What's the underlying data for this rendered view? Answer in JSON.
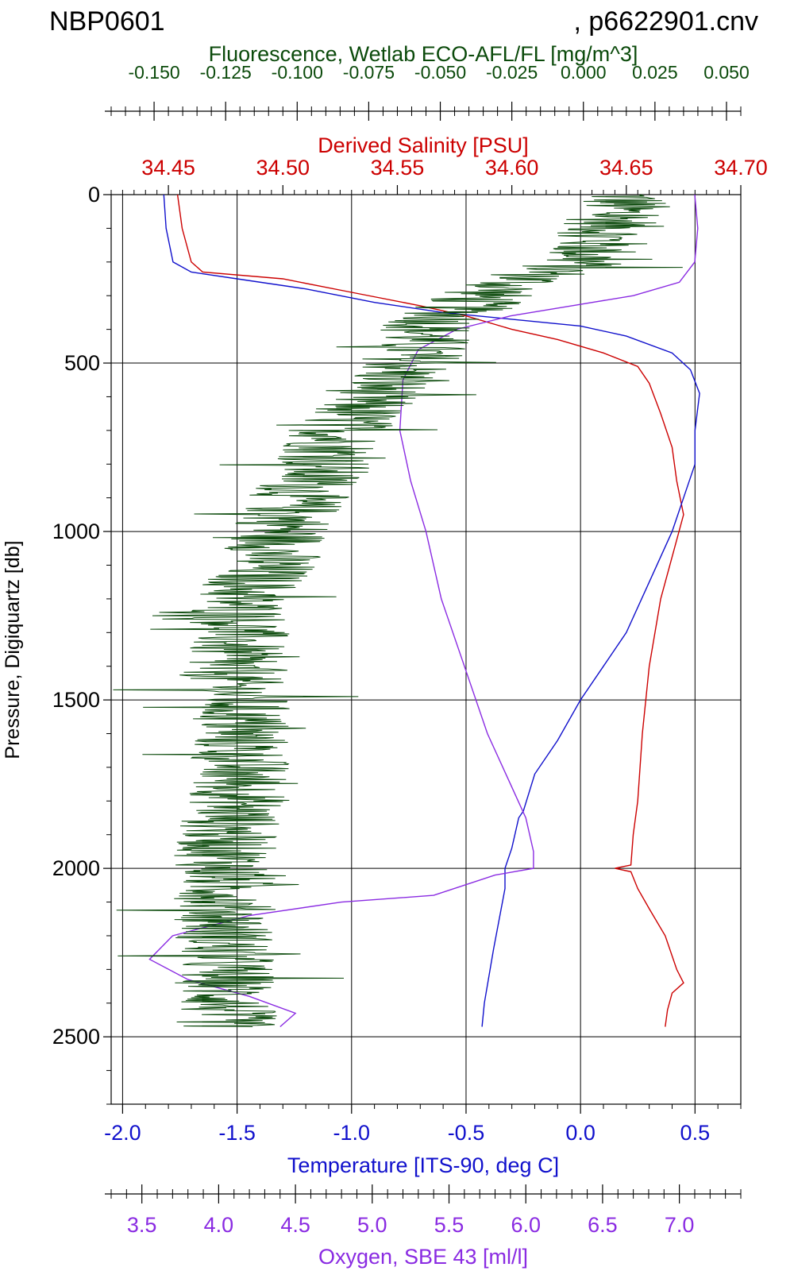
{
  "header": {
    "cruise": "NBP0601",
    "file": ", p6622901.cnv"
  },
  "chart_data": {
    "type": "line",
    "y_axis": {
      "label": "Pressure, Digiquartz [db]",
      "range": [
        0,
        2700
      ],
      "ticks": [
        0,
        500,
        1000,
        1500,
        2000,
        2500
      ],
      "tick_labels": [
        "0",
        "500",
        "1000",
        "1500",
        "2000",
        "2500"
      ],
      "inverted": true
    },
    "x_axes": {
      "fluorescence": {
        "label": "Fluorescence, Wetlab ECO-AFL/FL [mg/m^3]",
        "range": [
          -0.165,
          0.055
        ],
        "ticks": [
          -0.15,
          -0.125,
          -0.1,
          -0.075,
          -0.05,
          -0.025,
          0.0,
          0.025,
          0.05
        ],
        "tick_labels": [
          "-0.150",
          "-0.125",
          "-0.100",
          "-0.075",
          "-0.050",
          "-0.025",
          "0.000",
          "0.025",
          "0.050"
        ],
        "color": "#0b4a0b"
      },
      "salinity": {
        "label": "Derived Salinity [PSU]",
        "range": [
          34.425,
          34.7
        ],
        "ticks": [
          34.45,
          34.5,
          34.55,
          34.6,
          34.65,
          34.7
        ],
        "tick_labels": [
          "34.45",
          "34.50",
          "34.55",
          "34.60",
          "34.65",
          "34.70"
        ],
        "color": "#cc0000"
      },
      "temperature": {
        "label": "Temperature [ITS-90, deg C]",
        "range": [
          -2.05,
          0.7
        ],
        "ticks": [
          -2.0,
          -1.5,
          -1.0,
          -0.5,
          0.0,
          0.5
        ],
        "tick_labels": [
          "-2.0",
          "-1.5",
          "-1.0",
          "-0.5",
          "0.0",
          "0.5"
        ],
        "color": "#1010cc"
      },
      "oxygen": {
        "label": "Oxygen, SBE 43 [ml/l]",
        "range": [
          3.3,
          7.4
        ],
        "ticks": [
          3.5,
          4.0,
          4.5,
          5.0,
          5.5,
          6.0,
          6.5,
          7.0
        ],
        "tick_labels": [
          "3.5",
          "4.0",
          "4.5",
          "5.0",
          "5.5",
          "6.0",
          "6.5",
          "7.0"
        ],
        "color": "#8a2be2"
      }
    },
    "grid": true,
    "series": [
      {
        "axis": "salinity",
        "color": "#cc0000",
        "points": [
          [
            34.454,
            0
          ],
          [
            34.456,
            100
          ],
          [
            34.46,
            200
          ],
          [
            34.465,
            230
          ],
          [
            34.5,
            250
          ],
          [
            34.53,
            290
          ],
          [
            34.56,
            330
          ],
          [
            34.58,
            360
          ],
          [
            34.6,
            400
          ],
          [
            34.62,
            430
          ],
          [
            34.64,
            470
          ],
          [
            34.655,
            510
          ],
          [
            34.66,
            560
          ],
          [
            34.665,
            650
          ],
          [
            34.67,
            750
          ],
          [
            34.672,
            850
          ],
          [
            34.675,
            950
          ],
          [
            34.671,
            1050
          ],
          [
            34.665,
            1200
          ],
          [
            34.66,
            1400
          ],
          [
            34.657,
            1600
          ],
          [
            34.655,
            1800
          ],
          [
            34.653,
            1900
          ],
          [
            34.652,
            1990
          ],
          [
            34.645,
            2000
          ],
          [
            34.652,
            2010
          ],
          [
            34.655,
            2060
          ],
          [
            34.66,
            2120
          ],
          [
            34.667,
            2200
          ],
          [
            34.672,
            2300
          ],
          [
            34.675,
            2340
          ],
          [
            34.67,
            2370
          ],
          [
            34.668,
            2420
          ],
          [
            34.667,
            2470
          ]
        ]
      },
      {
        "axis": "temperature",
        "color": "#1010cc",
        "points": [
          [
            -1.82,
            0
          ],
          [
            -1.81,
            100
          ],
          [
            -1.78,
            200
          ],
          [
            -1.7,
            230
          ],
          [
            -1.5,
            250
          ],
          [
            -1.2,
            280
          ],
          [
            -0.9,
            320
          ],
          [
            -0.6,
            350
          ],
          [
            -0.3,
            370
          ],
          [
            0.0,
            390
          ],
          [
            0.2,
            420
          ],
          [
            0.4,
            470
          ],
          [
            0.48,
            520
          ],
          [
            0.52,
            590
          ],
          [
            0.5,
            700
          ],
          [
            0.5,
            800
          ],
          [
            0.45,
            900
          ],
          [
            0.4,
            1000
          ],
          [
            0.3,
            1150
          ],
          [
            0.2,
            1300
          ],
          [
            0.1,
            1400
          ],
          [
            0.0,
            1500
          ],
          [
            -0.1,
            1620
          ],
          [
            -0.2,
            1720
          ],
          [
            -0.25,
            1830
          ],
          [
            -0.27,
            1850
          ],
          [
            -0.3,
            1940
          ],
          [
            -0.33,
            2000
          ],
          [
            -0.33,
            2060
          ],
          [
            -0.38,
            2240
          ],
          [
            -0.42,
            2400
          ],
          [
            -0.43,
            2470
          ]
        ]
      },
      {
        "axis": "oxygen",
        "color": "#8a2be2",
        "points": [
          [
            7.1,
            0
          ],
          [
            7.12,
            100
          ],
          [
            7.1,
            200
          ],
          [
            7.0,
            260
          ],
          [
            6.7,
            300
          ],
          [
            6.3,
            330
          ],
          [
            5.9,
            360
          ],
          [
            5.55,
            400
          ],
          [
            5.3,
            460
          ],
          [
            5.2,
            550
          ],
          [
            5.18,
            700
          ],
          [
            5.25,
            850
          ],
          [
            5.35,
            1000
          ],
          [
            5.45,
            1200
          ],
          [
            5.6,
            1400
          ],
          [
            5.75,
            1600
          ],
          [
            5.9,
            1750
          ],
          [
            6.0,
            1850
          ],
          [
            6.05,
            1950
          ],
          [
            6.05,
            2000
          ],
          [
            5.8,
            2020
          ],
          [
            5.4,
            2080
          ],
          [
            4.8,
            2100
          ],
          [
            4.2,
            2140
          ],
          [
            3.7,
            2200
          ],
          [
            3.55,
            2270
          ],
          [
            3.8,
            2330
          ],
          [
            4.2,
            2380
          ],
          [
            4.5,
            2430
          ],
          [
            4.4,
            2470
          ]
        ]
      },
      {
        "axis": "fluorescence",
        "color": "#0b4a0b",
        "noise_amplitude": 0.018,
        "points": [
          [
            0.015,
            0
          ],
          [
            0.01,
            100
          ],
          [
            0.0,
            200
          ],
          [
            -0.02,
            250
          ],
          [
            -0.035,
            300
          ],
          [
            -0.045,
            350
          ],
          [
            -0.055,
            400
          ],
          [
            -0.06,
            500
          ],
          [
            -0.075,
            600
          ],
          [
            -0.085,
            700
          ],
          [
            -0.09,
            800
          ],
          [
            -0.1,
            900
          ],
          [
            -0.105,
            1000
          ],
          [
            -0.11,
            1100
          ],
          [
            -0.12,
            1200
          ],
          [
            -0.12,
            1300
          ],
          [
            -0.125,
            1400
          ],
          [
            -0.12,
            1500
          ],
          [
            -0.12,
            1600
          ],
          [
            -0.12,
            1700
          ],
          [
            -0.12,
            1800
          ],
          [
            -0.125,
            1900
          ],
          [
            -0.125,
            2000
          ],
          [
            -0.125,
            2100
          ],
          [
            -0.125,
            2200
          ],
          [
            -0.125,
            2300
          ],
          [
            -0.125,
            2400
          ],
          [
            -0.125,
            2470
          ]
        ]
      }
    ]
  }
}
